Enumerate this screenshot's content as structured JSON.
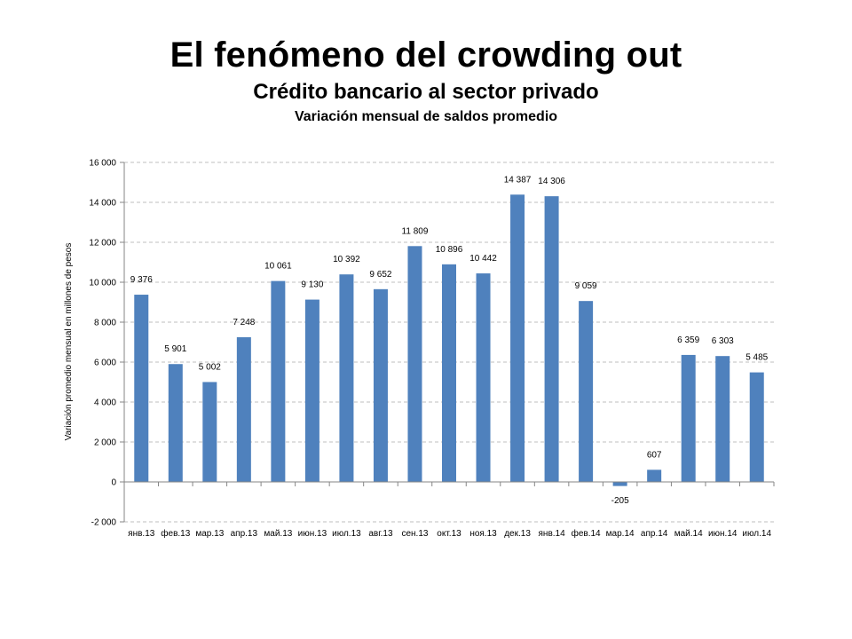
{
  "slide": {
    "title": "El fenómeno del crowding out",
    "subtitle": "Crédito bancario al sector privado",
    "subsubtitle": "Variación mensual de saldos promedio"
  },
  "chart_data": {
    "type": "bar",
    "title": "",
    "xlabel": "",
    "ylabel": "Variación promedio mensual en millones de pesos",
    "categories": [
      "янв.13",
      "фев.13",
      "мар.13",
      "апр.13",
      "май.13",
      "июн.13",
      "июл.13",
      "авг.13",
      "сен.13",
      "окт.13",
      "ноя.13",
      "дек.13",
      "янв.14",
      "фев.14",
      "мар.14",
      "апр.14",
      "май.14",
      "июн.14",
      "июл.14"
    ],
    "values": [
      9376,
      5901,
      5002,
      7248,
      10061,
      9130,
      10392,
      9652,
      11809,
      10896,
      10442,
      14387,
      14306,
      9059,
      -205,
      607,
      6359,
      6303,
      5485
    ],
    "value_labels": [
      "9 376",
      "5 901",
      "5 002",
      "7 248",
      "10 061",
      "9 130",
      "10 392",
      "9 652",
      "11 809",
      "10 896",
      "10 442",
      "14 387",
      "14 306",
      "9 059",
      "-205",
      "607",
      "6 359",
      "6 303",
      "5 485"
    ],
    "ylim": [
      -2000,
      16000
    ],
    "yticks": [
      -2000,
      0,
      2000,
      4000,
      6000,
      8000,
      10000,
      12000,
      14000,
      16000
    ],
    "ytick_labels": [
      "-2 000",
      "0",
      "2 000",
      "4 000",
      "6 000",
      "8 000",
      "10 000",
      "12 000",
      "14 000",
      "16 000"
    ],
    "grid": true,
    "grid_style": "dashed",
    "legend": "none",
    "bar_color": "#4F81BD",
    "grid_color": "#BFBFBF",
    "axis_color": "#868686"
  }
}
